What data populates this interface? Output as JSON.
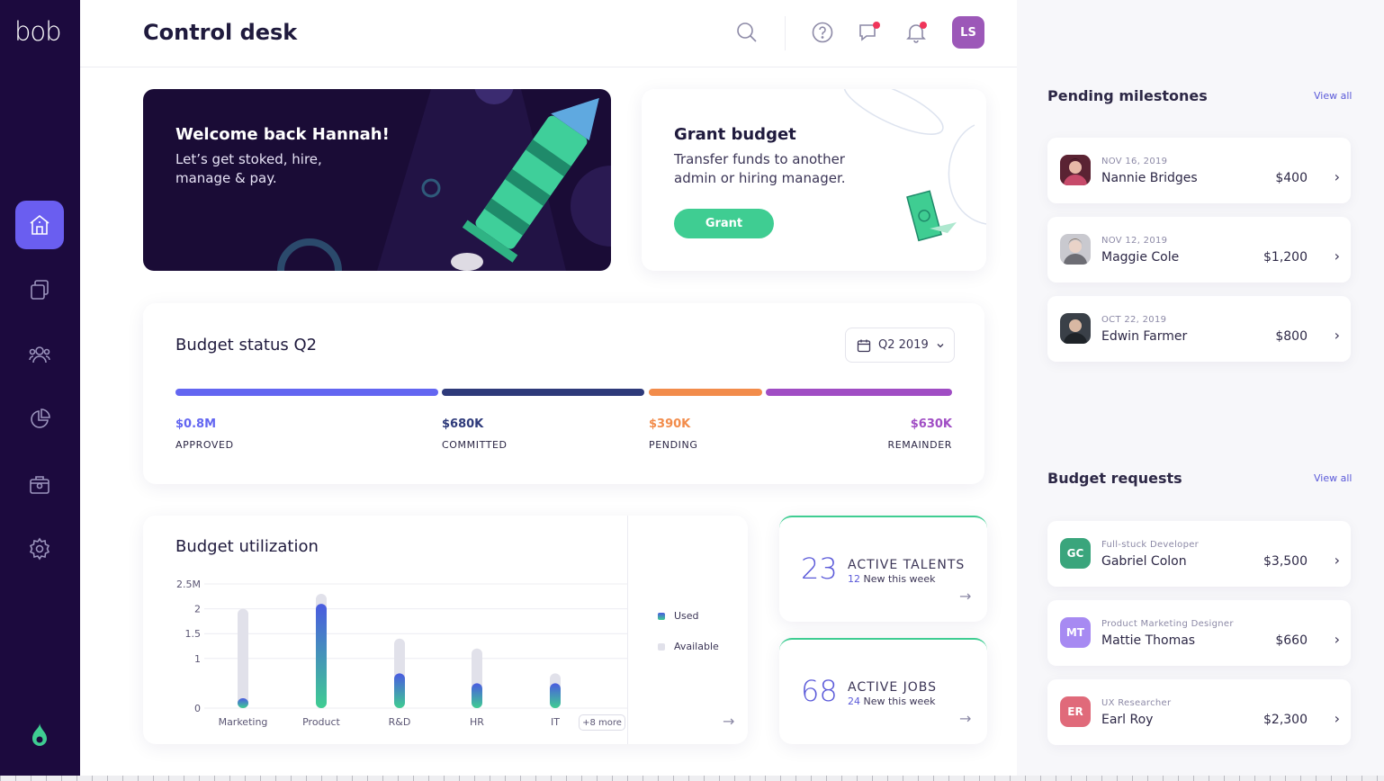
{
  "app": {
    "logo": "bob"
  },
  "sidebar": {
    "items": [
      {
        "icon": "home-icon",
        "active": true
      },
      {
        "icon": "copy-icon",
        "active": false
      },
      {
        "icon": "people-icon",
        "active": false
      },
      {
        "icon": "pie-chart-icon",
        "active": false
      },
      {
        "icon": "briefcase-icon",
        "active": false
      },
      {
        "icon": "gear-icon",
        "active": false
      }
    ]
  },
  "header": {
    "title": "Control desk",
    "avatar_initials": "LS"
  },
  "welcome": {
    "title": "Welcome back Hannah!",
    "text": "Let’s get stoked, hire, manage & pay."
  },
  "grant": {
    "title": "Grant budget",
    "text": "Transfer funds to another admin or hiring manager.",
    "button": "Grant"
  },
  "budget_status": {
    "title": "Budget status Q2",
    "period": "Q2 2019",
    "segments": [
      {
        "value": "$0.8M",
        "label": "APPROVED",
        "color": "#6366f1"
      },
      {
        "value": "$680K",
        "label": "COMMITTED",
        "color": "#2e3a7a"
      },
      {
        "value": "$390K",
        "label": "PENDING",
        "color": "#f28c4b"
      },
      {
        "value": "$630K",
        "label": "REMAINDER",
        "color": "#a04dc4"
      }
    ]
  },
  "budget_utilization": {
    "title": "Budget utilization",
    "more_label": "+8 more",
    "legend": {
      "used": "Used",
      "available": "Available"
    }
  },
  "chart_data": {
    "type": "bar",
    "title": "Budget utilization",
    "categories": [
      "Marketing",
      "Product",
      "R&D",
      "HR",
      "IT"
    ],
    "series": [
      {
        "name": "Used",
        "values": [
          0.2,
          2.1,
          0.7,
          0.5,
          0.5
        ]
      },
      {
        "name": "Available",
        "values": [
          1.8,
          0.2,
          0.7,
          0.7,
          0.2
        ]
      }
    ],
    "yticks": [
      "0",
      "1",
      "1.5",
      "2",
      "2.5M"
    ],
    "yvalues": [
      0,
      1,
      1.5,
      2,
      2.5
    ],
    "ylim": [
      0,
      2.5
    ],
    "grid": true,
    "legend": "right"
  },
  "stats": [
    {
      "number": "23",
      "label": "ACTIVE TALENTS",
      "sub_count": "12",
      "sub_text": "New this week"
    },
    {
      "number": "68",
      "label": "ACTIVE JOBS",
      "sub_count": "24",
      "sub_text": "New this week"
    }
  ],
  "milestones": {
    "title": "Pending milestones",
    "view_all": "View all",
    "items": [
      {
        "date": "NOV 16, 2019",
        "name": "Nannie Bridges",
        "amount": "$400"
      },
      {
        "date": "NOV 12, 2019",
        "name": "Maggie Cole",
        "amount": "$1,200"
      },
      {
        "date": "OCT 22, 2019",
        "name": "Edwin Farmer",
        "amount": "$800"
      }
    ]
  },
  "requests": {
    "title": "Budget requests",
    "view_all": "View all",
    "items": [
      {
        "initials": "GC",
        "role": "Full-stuck Developer",
        "name": "Gabriel Colon",
        "amount": "$3,500",
        "color": "#3aa57c"
      },
      {
        "initials": "MT",
        "role": "Product Marketing Designer",
        "name": "Mattie Thomas",
        "amount": "$660",
        "color": "#a78af2"
      },
      {
        "initials": "ER",
        "role": "UX Researcher",
        "name": "Earl Roy",
        "amount": "$2,300",
        "color": "#e06a7a"
      }
    ]
  }
}
